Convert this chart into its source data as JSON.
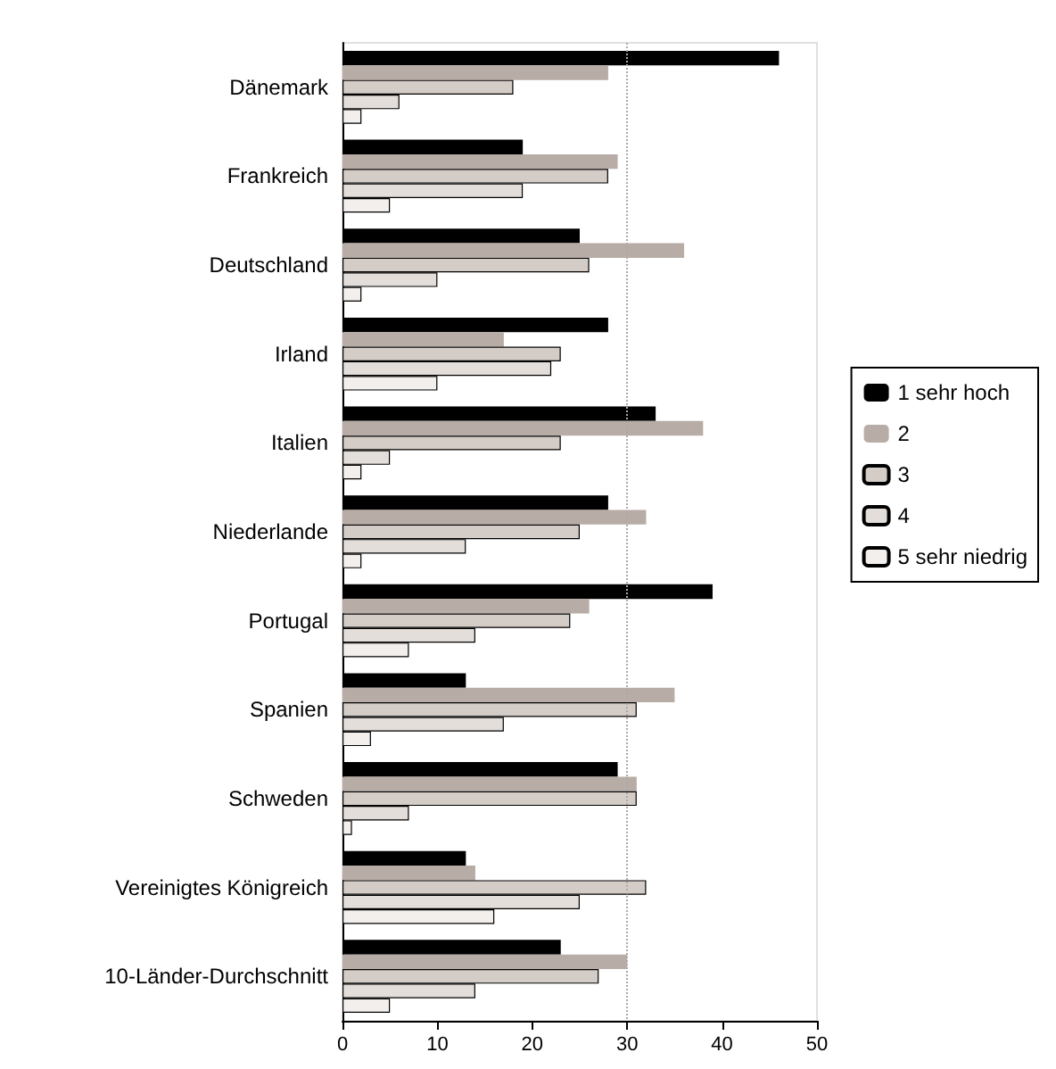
{
  "chart_data": {
    "type": "bar",
    "orientation": "horizontal",
    "categories": [
      "Dänemark",
      "Frankreich",
      "Deutschland",
      "Irland",
      "Italien",
      "Niederlande",
      "Portugal",
      "Spanien",
      "Schweden",
      "Vereinigtes Königreich",
      "10-Länder-Durchschnitt"
    ],
    "series": [
      {
        "name": "1 sehr hoch",
        "color": "#000000",
        "values": [
          46,
          19,
          25,
          28,
          33,
          28,
          39,
          13,
          29,
          13,
          23
        ]
      },
      {
        "name": "2",
        "color": "#b8aca6",
        "values": [
          28,
          29,
          36,
          17,
          38,
          32,
          26,
          35,
          31,
          14,
          30
        ]
      },
      {
        "name": "3",
        "color": "#d4ccc6",
        "values": [
          18,
          28,
          26,
          23,
          23,
          25,
          24,
          31,
          31,
          32,
          27
        ]
      },
      {
        "name": "4",
        "color": "#e4deda",
        "values": [
          6,
          19,
          10,
          22,
          5,
          13,
          14,
          17,
          7,
          25,
          14
        ]
      },
      {
        "name": "5 sehr niedrig",
        "color": "#f2efed",
        "values": [
          2,
          5,
          2,
          10,
          2,
          2,
          7,
          3,
          1,
          16,
          5
        ]
      }
    ],
    "xlim": [
      0,
      50
    ],
    "xticks": [
      0,
      10,
      20,
      30,
      40,
      50
    ],
    "ref_lines": [
      {
        "axis": "x",
        "value": 30,
        "color": "#b0a8a4",
        "line_style": "dotted"
      }
    ],
    "grid": false,
    "legend": "right"
  }
}
